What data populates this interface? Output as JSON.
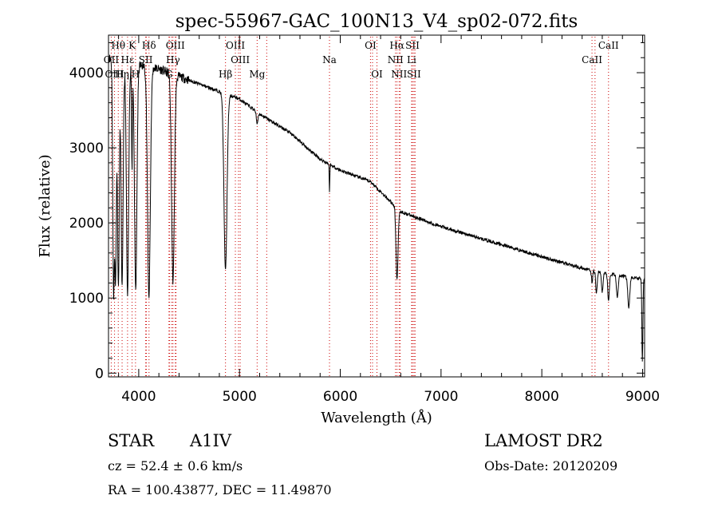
{
  "chart_data": {
    "type": "line",
    "title": "spec-55967-GAC_100N13_V4_sp02-072.fits",
    "xlabel": "Wavelength (Å)",
    "ylabel": "Flux (relative)",
    "xlim": [
      3700,
      9020
    ],
    "ylim": [
      -50,
      4500
    ],
    "xticks": [
      4000,
      5000,
      6000,
      7000,
      8000,
      9000
    ],
    "yticks": [
      0,
      1000,
      2000,
      3000,
      4000
    ],
    "x_minor_step": 200,
    "y_minor_step": 200,
    "series_color": "#000000",
    "line_marker_color": "#cc0000",
    "continuum": [
      [
        3700,
        4200
      ],
      [
        3800,
        4150
      ],
      [
        3900,
        4120
      ],
      [
        4000,
        4100
      ],
      [
        4200,
        4050
      ],
      [
        4500,
        3900
      ],
      [
        4800,
        3750
      ],
      [
        5000,
        3650
      ],
      [
        5200,
        3450
      ],
      [
        5500,
        3200
      ],
      [
        5800,
        2850
      ],
      [
        6000,
        2700
      ],
      [
        6300,
        2550
      ],
      [
        6600,
        2150
      ],
      [
        7000,
        1950
      ],
      [
        7500,
        1750
      ],
      [
        8000,
        1550
      ],
      [
        8500,
        1360
      ],
      [
        9000,
        1250
      ]
    ],
    "absorption": [
      {
        "center": 3750,
        "depth": 3000,
        "width": 8
      },
      {
        "center": 3770,
        "depth": 2800,
        "width": 8
      },
      {
        "center": 3798,
        "depth": 3000,
        "width": 9
      },
      {
        "center": 3835,
        "depth": 3000,
        "width": 10
      },
      {
        "center": 3889,
        "depth": 3100,
        "width": 11
      },
      {
        "center": 3933,
        "depth": 1400,
        "width": 4
      },
      {
        "center": 3970,
        "depth": 3000,
        "width": 12
      },
      {
        "center": 4101,
        "depth": 3050,
        "width": 14
      },
      {
        "center": 4340,
        "depth": 2750,
        "width": 14
      },
      {
        "center": 4861,
        "depth": 2350,
        "width": 15
      },
      {
        "center": 5175,
        "depth": 150,
        "width": 8
      },
      {
        "center": 5893,
        "depth": 350,
        "width": 3
      },
      {
        "center": 6563,
        "depth": 950,
        "width": 10
      },
      {
        "center": 8498,
        "depth": 150,
        "width": 6
      },
      {
        "center": 8542,
        "depth": 300,
        "width": 7
      },
      {
        "center": 8600,
        "depth": 250,
        "width": 8
      },
      {
        "center": 8662,
        "depth": 350,
        "width": 8
      },
      {
        "center": 8750,
        "depth": 300,
        "width": 9
      },
      {
        "center": 8863,
        "depth": 400,
        "width": 10
      },
      {
        "center": 8998,
        "depth": 1100,
        "width": 5
      }
    ],
    "line_markers": [
      {
        "label": "Hθ",
        "x": 3797,
        "row": 0
      },
      {
        "label": "K",
        "x": 3934,
        "row": 0
      },
      {
        "label": "Hδ",
        "x": 4102,
        "row": 0
      },
      {
        "label": "OIII",
        "x": 4363,
        "row": 0
      },
      {
        "label": "OIII",
        "x": 4959,
        "row": 0
      },
      {
        "label": "OI",
        "x": 6300,
        "row": 0
      },
      {
        "label": "Hα",
        "x": 6563,
        "row": 0
      },
      {
        "label": "SII",
        "x": 6716,
        "row": 0
      },
      {
        "label": "CaII",
        "x": 8662,
        "row": 0
      },
      {
        "label": "OII",
        "x": 3727,
        "row": 1
      },
      {
        "label": "Hε",
        "x": 3889,
        "row": 1
      },
      {
        "label": "SII",
        "x": 4069,
        "row": 1
      },
      {
        "label": "Hγ",
        "x": 4340,
        "row": 1
      },
      {
        "label": "OIII",
        "x": 5007,
        "row": 1
      },
      {
        "label": "Na",
        "x": 5893,
        "row": 1
      },
      {
        "label": "NII",
        "x": 6548,
        "row": 1
      },
      {
        "label": "Li",
        "x": 6708,
        "row": 1
      },
      {
        "label": "CaII",
        "x": 8498,
        "row": 1
      },
      {
        "label": "OIII",
        "x": 3760,
        "row": 2
      },
      {
        "label": "Hη",
        "x": 3835,
        "row": 2
      },
      {
        "label": "H",
        "x": 3968,
        "row": 2
      },
      {
        "label": "G",
        "x": 4300,
        "row": 2
      },
      {
        "label": "Hβ",
        "x": 4861,
        "row": 2
      },
      {
        "label": "Mg",
        "x": 5175,
        "row": 2
      },
      {
        "label": "OI",
        "x": 6364,
        "row": 2
      },
      {
        "label": "NII",
        "x": 6584,
        "row": 2
      },
      {
        "label": "SII",
        "x": 6731,
        "row": 2
      }
    ],
    "extra_marker_lines": [
      4077,
      4307,
      4328,
      4370,
      4990,
      5270,
      6320,
      6595,
      6742,
      8528
    ]
  },
  "info": {
    "object_class": "STAR",
    "subclass": "A1IV",
    "survey": "LAMOST DR2",
    "redshift": "cz = 52.4 ± 0.6 km/s",
    "obs_date": "Obs-Date: 20120209",
    "coords": "RA = 100.43877, DEC =  11.49870"
  }
}
